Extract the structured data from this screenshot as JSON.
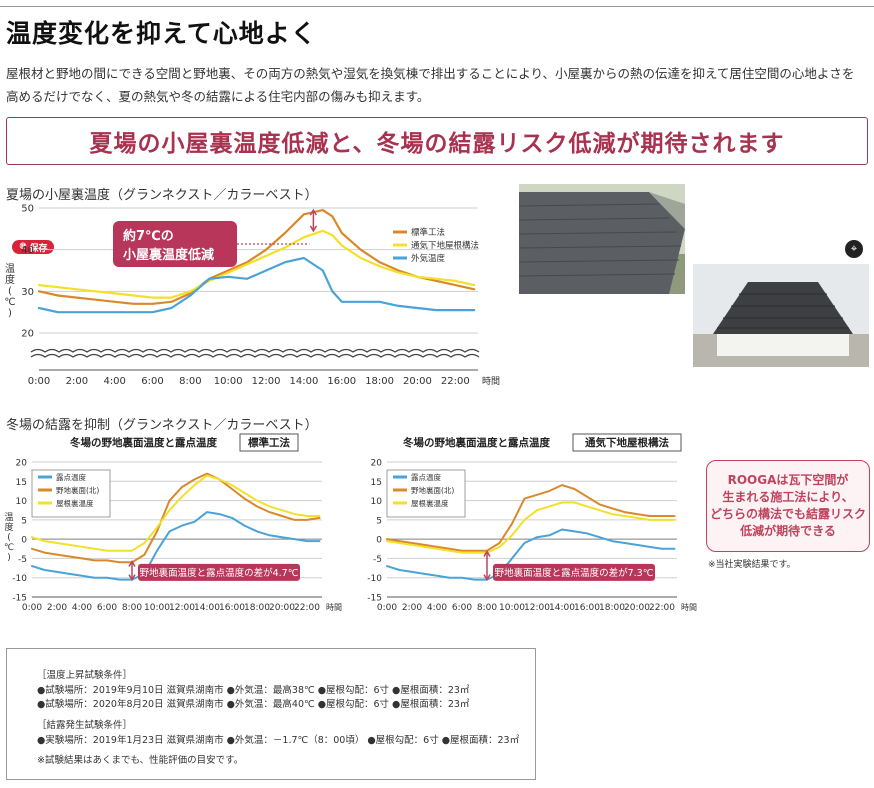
{
  "title": "温度変化を抑えて心地よく",
  "intro": "屋根材と野地の間にできる空間と野地裏、その両方の熱気や湿気を換気棟で排出することにより、小屋裏からの熱の伝達を抑えて居住空間の心地よさを高めるだけでなく、夏の熱気や冬の結露による住宅内部の傷みも抑えます。",
  "banner": "夏場の小屋裏温度低減と、冬場の結露リスク低減が期待されます",
  "pin_label": "保存",
  "summer_section_title": "夏場の小屋裏温度（グランネクスト／カラーベスト）",
  "winter_section_title": "冬場の結露を抑制（グランネクスト／カラーベスト）",
  "rooga_text": [
    "ROOGAは瓦下空間が",
    "生まれる施工法により、",
    "どちらの構法でも結露リスク",
    "低減が期待できる"
  ],
  "rooga_note": "※当社実験結果です。",
  "colors": {
    "standard": "#d9892a",
    "ventilated": "#f2e02a",
    "third": "#4aa3d8",
    "accent": "#c0435d"
  },
  "chart_data": [
    {
      "type": "line",
      "title": "",
      "ylabel": "温度(℃)",
      "xlabel": "時間",
      "x_ticks": [
        "0:00",
        "2:00",
        "4:00",
        "6:00",
        "8:00",
        "10:00",
        "12:00",
        "14:00",
        "16:00",
        "18:00",
        "20:00",
        "22:00"
      ],
      "y_ticks": [
        20,
        30,
        40,
        50
      ],
      "ylim": [
        20,
        50
      ],
      "axis_break": true,
      "grid": true,
      "legend": "right",
      "x": [
        0,
        1,
        2,
        3,
        4,
        5,
        6,
        7,
        8,
        9,
        10,
        11,
        12,
        13,
        14,
        15,
        15.5,
        16,
        17,
        18,
        19,
        20,
        21,
        22,
        23
      ],
      "series": [
        {
          "name": "標準工法",
          "color": "#d9892a",
          "values": [
            30,
            29,
            28.5,
            28,
            27.5,
            27,
            27,
            27.5,
            29.5,
            33,
            35,
            37,
            40,
            44,
            48.5,
            49.5,
            48,
            44,
            40,
            37,
            35,
            33.5,
            32.5,
            31.5,
            30.5
          ]
        },
        {
          "name": "通気下地屋根構法",
          "color": "#f2e02a",
          "values": [
            31.5,
            31,
            30.5,
            30,
            29.5,
            29,
            28.5,
            28.5,
            30,
            32.5,
            34.5,
            36.5,
            38.5,
            40.5,
            43,
            44.5,
            43.5,
            41,
            38,
            36,
            34.5,
            33.5,
            33,
            32.5,
            31.5
          ]
        },
        {
          "name": "外気温度",
          "color": "#4aa3d8",
          "values": [
            26,
            25,
            25,
            25,
            25,
            25,
            25,
            26,
            29,
            33,
            33.5,
            33,
            35,
            37,
            38,
            35,
            30,
            27.5,
            27.5,
            27.5,
            26.5,
            26,
            25.5,
            25.5,
            25.5
          ]
        }
      ],
      "annotation": {
        "lines": [
          "約7℃の",
          "小屋裏温度低減"
        ],
        "at_x": 14.5,
        "from": 44.5,
        "to": 49.5
      }
    },
    {
      "type": "line",
      "title": "冬場の野地裏面温度と露点温度",
      "title_tag": "標準工法",
      "ylabel": "温度(℃)",
      "xlabel": "時間",
      "x_ticks": [
        "0:00",
        "2:00",
        "4:00",
        "6:00",
        "8:00",
        "10:00",
        "12:00",
        "14:00",
        "16:00",
        "18:00",
        "20:00",
        "22:00"
      ],
      "y_ticks": [
        -15,
        -10,
        -5,
        0,
        5,
        10,
        15,
        20
      ],
      "ylim": [
        -15,
        20
      ],
      "grid": true,
      "legend": "top-left",
      "x": [
        0,
        1,
        2,
        3,
        4,
        5,
        6,
        7,
        8,
        9,
        10,
        11,
        12,
        13,
        14,
        15,
        16,
        17,
        18,
        19,
        20,
        21,
        22,
        23
      ],
      "series": [
        {
          "name": "露点温度",
          "color": "#4aa3d8",
          "values": [
            -7,
            -8,
            -8.5,
            -9,
            -9.5,
            -10,
            -10,
            -10.5,
            -10.5,
            -9,
            -3,
            2,
            3.5,
            4.5,
            7,
            6.5,
            5.5,
            3.5,
            2,
            1,
            0.5,
            0,
            -0.5,
            -0.5
          ]
        },
        {
          "name": "野地裏面(北)",
          "color": "#d9892a",
          "values": [
            -2.5,
            -3.5,
            -4,
            -4.5,
            -5,
            -5.5,
            -5.5,
            -6,
            -6,
            -4,
            2,
            10,
            13.5,
            15.5,
            17,
            15.5,
            13,
            10.5,
            8.5,
            7,
            6,
            5,
            5,
            5.5
          ]
        },
        {
          "name": "屋根裏温度",
          "color": "#f2e02a",
          "values": [
            0.5,
            -0.5,
            -1,
            -1.5,
            -2,
            -2.5,
            -3,
            -3,
            -3,
            -1,
            3,
            7.5,
            11,
            14,
            16.5,
            15.5,
            14,
            12,
            10,
            8.5,
            7.5,
            6.5,
            6,
            6
          ]
        }
      ],
      "annotation": {
        "label": "野地裏面温度と露点温度の差が4.7℃",
        "at_x": 8,
        "from": -10.5,
        "to": -5.8
      }
    },
    {
      "type": "line",
      "title": "冬場の野地裏面温度と露点温度",
      "title_tag": "通気下地屋根構法",
      "ylabel": "",
      "xlabel": "時間",
      "x_ticks": [
        "0:00",
        "2:00",
        "4:00",
        "6:00",
        "8:00",
        "10:00",
        "12:00",
        "14:00",
        "16:00",
        "18:00",
        "20:00",
        "22:00"
      ],
      "y_ticks": [
        -15,
        -10,
        -5,
        0,
        5,
        10,
        15,
        20
      ],
      "ylim": [
        -15,
        20
      ],
      "grid": true,
      "legend": "top-left",
      "x": [
        0,
        1,
        2,
        3,
        4,
        5,
        6,
        7,
        8,
        9,
        10,
        11,
        12,
        13,
        14,
        15,
        16,
        17,
        18,
        19,
        20,
        21,
        22,
        23
      ],
      "series": [
        {
          "name": "露点温度",
          "color": "#4aa3d8",
          "values": [
            -7,
            -8,
            -8.5,
            -9,
            -9.5,
            -10,
            -10,
            -10.5,
            -10.5,
            -9,
            -5,
            -1,
            0.5,
            1,
            2.5,
            2,
            1.5,
            0.5,
            -0.5,
            -1,
            -1.5,
            -2,
            -2.5,
            -2.5
          ]
        },
        {
          "name": "野地裏面(北)",
          "color": "#d9892a",
          "values": [
            0,
            -0.5,
            -1,
            -1.5,
            -2,
            -2.5,
            -3,
            -3,
            -3,
            -1,
            4,
            10.5,
            11.5,
            12.5,
            14,
            13,
            11,
            9,
            8,
            7,
            6.5,
            6,
            6,
            6
          ]
        },
        {
          "name": "屋根裏温度",
          "color": "#f2e02a",
          "values": [
            -0.5,
            -1,
            -1.5,
            -2,
            -2.5,
            -3,
            -3.5,
            -3.5,
            -3.5,
            -2,
            1,
            5,
            7.5,
            8.5,
            9.5,
            9.5,
            8.5,
            7.5,
            6.5,
            6,
            5.5,
            5,
            5,
            5
          ]
        }
      ],
      "annotation": {
        "label": "野地裏面温度と露点温度の差が7.3℃",
        "at_x": 8,
        "from": -10.5,
        "to": -3.2
      }
    }
  ],
  "conditions": {
    "heat_title": "［温度上昇試験条件］",
    "heat_lines": [
      "●試験場所：2019年9月10日 滋賀県湖南市 ●外気温：最高38℃ ●屋根勾配：6寸 ●屋根面積：23㎡",
      "●試験場所：2020年8月20日 滋賀県湖南市 ●外気温：最高40℃ ●屋根勾配：6寸 ●屋根面積：23㎡"
    ],
    "cond_title": "［結露発生試験条件］",
    "cond_lines": [
      "●実験場所：2019年1月23日 滋賀県湖南市 ●外気温：－1.7℃（8：00頃） ●屋根勾配：6寸 ●屋根面積：23㎡"
    ],
    "footnote": "※試験結果はあくまでも、性能評価の目安です。"
  }
}
